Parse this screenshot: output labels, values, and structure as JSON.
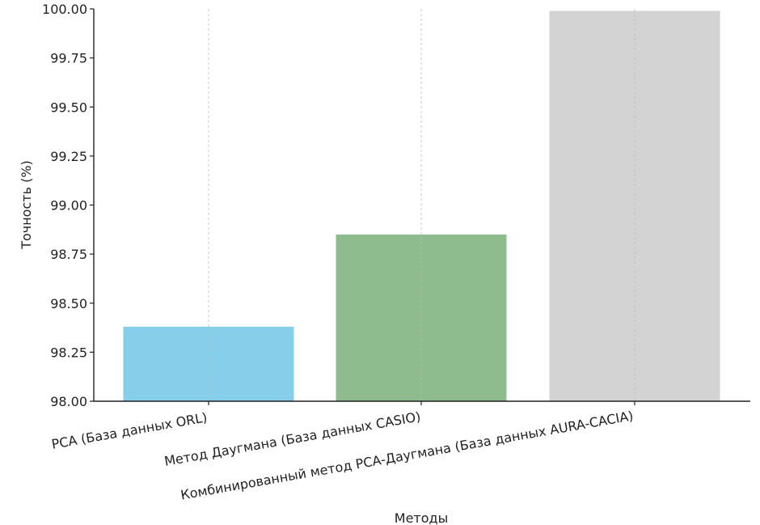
{
  "chart_data": {
    "type": "bar",
    "title": "",
    "xlabel": "Методы",
    "ylabel": "Точность (%)",
    "ylim": [
      98.0,
      100.0
    ],
    "yticks": [
      98.0,
      98.25,
      98.5,
      98.75,
      99.0,
      99.25,
      99.5,
      99.75,
      100.0
    ],
    "ytick_labels": [
      "98.00",
      "98.25",
      "98.50",
      "98.75",
      "99.00",
      "99.25",
      "99.50",
      "99.75",
      "100.00"
    ],
    "categories": [
      "PCA (База данных ORL)",
      "Метод Даугмана (База данных CASIO)",
      "Комбинированный метод PCA-Даугмана (База данных AURA-CACIA)"
    ],
    "values": [
      98.38,
      98.85,
      99.99
    ],
    "colors": [
      "#87ceeb",
      "#8fbc8f",
      "#d3d3d3"
    ],
    "grid": "vertical dashed at categories",
    "legend": "none"
  }
}
